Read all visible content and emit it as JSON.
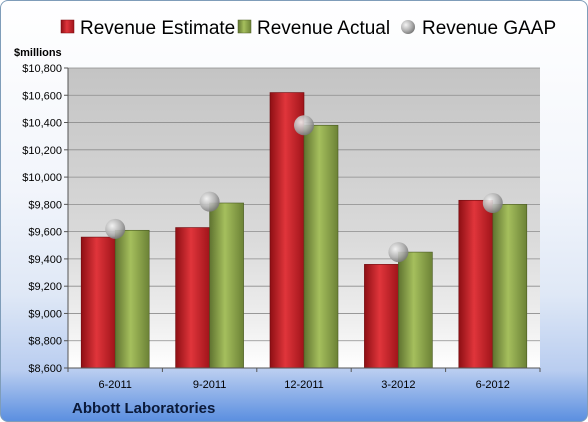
{
  "company": "Abbott Laboratories",
  "unit_label": "$millions",
  "colors": {
    "estimate": "#cc1f26",
    "actual": "#8fa84b",
    "gaap": "#a8a8a8",
    "plot_top": "#c0c0c0",
    "plot_bottom": "#ffffff"
  },
  "chart_data": {
    "type": "bar",
    "categories": [
      "6-2011",
      "9-2011",
      "12-2011",
      "3-2012",
      "6-2012"
    ],
    "series": [
      {
        "name": "Revenue Estimate",
        "kind": "bar",
        "values": [
          9560,
          9630,
          10620,
          9360,
          9830
        ]
      },
      {
        "name": "Revenue Actual",
        "kind": "bar",
        "values": [
          9610,
          9810,
          10380,
          9450,
          9800
        ]
      },
      {
        "name": "Revenue GAAP",
        "kind": "marker",
        "values": [
          9620,
          9820,
          10380,
          9450,
          9810
        ]
      }
    ],
    "ylim": [
      8600,
      10800
    ],
    "y_ticks": [
      "$8,600",
      "$8,800",
      "$9,000",
      "$9,200",
      "$9,400",
      "$9,600",
      "$9,800",
      "$10,000",
      "$10,200",
      "$10,400",
      "$10,600",
      "$10,800"
    ],
    "ylabel": "$millions",
    "grid": true,
    "legend_position": "top"
  }
}
